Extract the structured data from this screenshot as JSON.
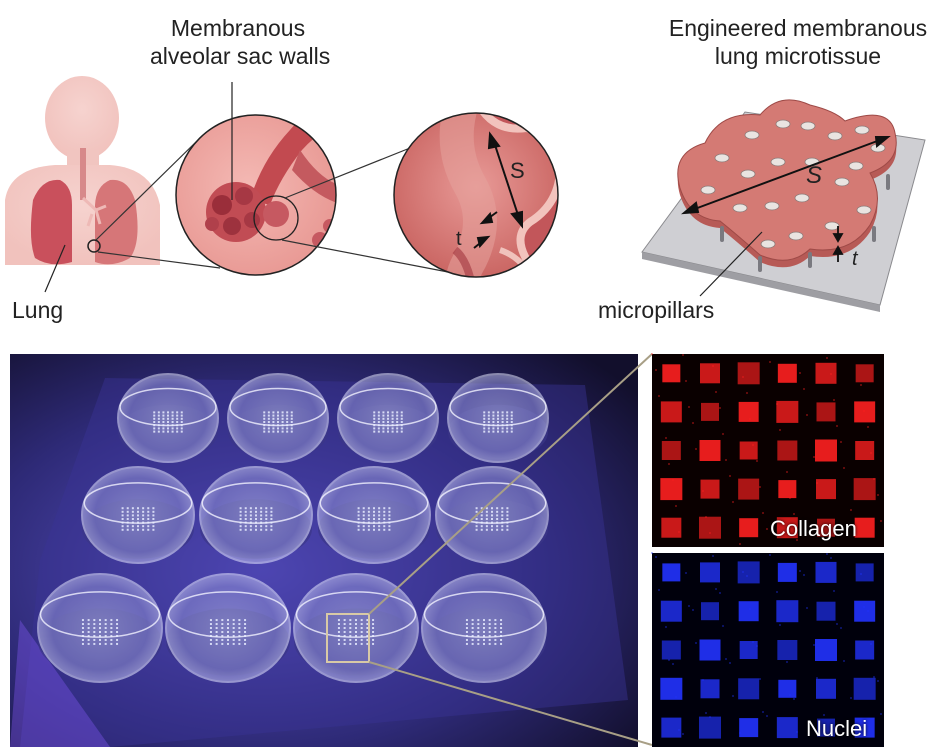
{
  "labels": {
    "alveolar": [
      "Membranous",
      "alveolar sac walls"
    ],
    "engineered": [
      "Engineered membranous",
      "lung microtissue"
    ],
    "lung": "Lung",
    "micropillars": "micropillars",
    "s_symbol": "S",
    "t_symbol": "t"
  },
  "channels": {
    "collagen": "Collagen",
    "nuclei": "Nuclei"
  },
  "colors": {
    "lung_tissue": "#c9505c",
    "alveolus_fill": "#eaa4a2",
    "microtissue": "#d27670",
    "collagen": "#ff2020",
    "nuclei": "#2233ff",
    "plate_glow": "#6f4cff"
  }
}
